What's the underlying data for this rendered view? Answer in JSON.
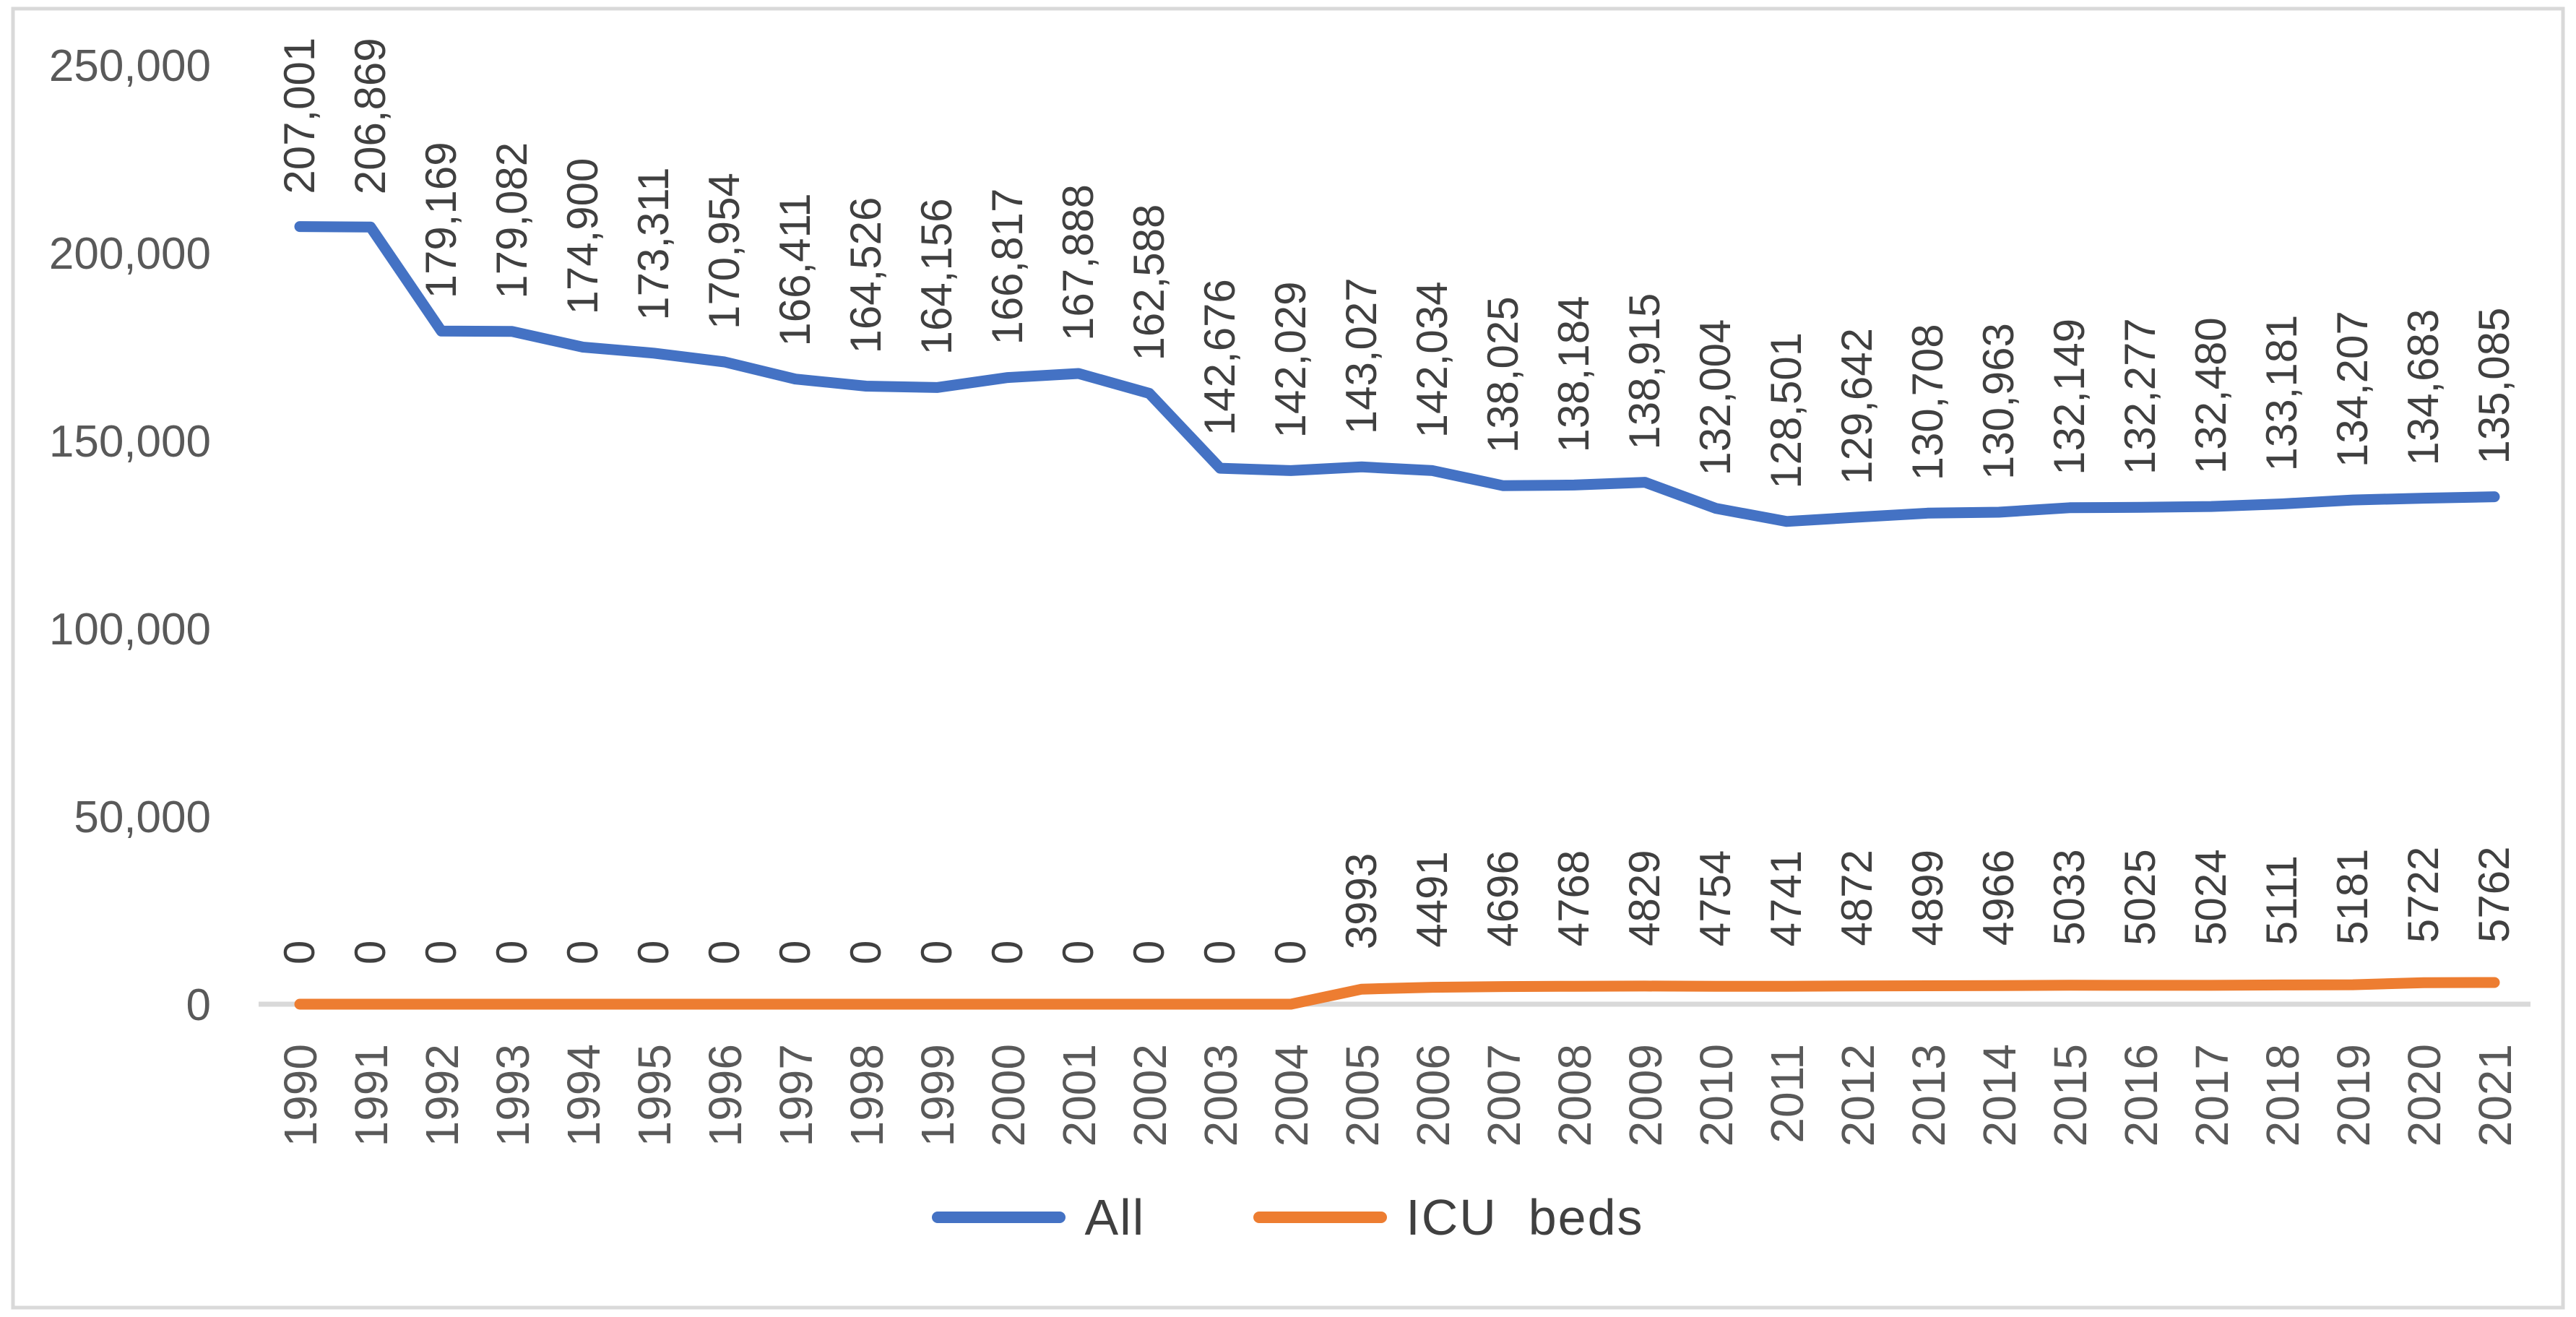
{
  "colors": {
    "all_series": "#4472C4",
    "icu_series": "#ED7D31",
    "axis_text": "#595959",
    "label_text": "#404040",
    "axis_line": "#D9D9D9",
    "border": "#D9D9D9",
    "background": "#FFFFFF"
  },
  "legend": {
    "items": [
      {
        "label": "All",
        "color": "#4472C4"
      },
      {
        "label": "ICU  beds",
        "color": "#ED7D31"
      }
    ]
  },
  "chart_data": {
    "type": "line",
    "title": "",
    "legend_position": "bottom",
    "grid": false,
    "ylim": [
      0,
      250000
    ],
    "y_axis": {
      "ticks": [
        {
          "value": 250000,
          "label": "250,000"
        },
        {
          "value": 200000,
          "label": "200,000"
        },
        {
          "value": 150000,
          "label": "150,000"
        },
        {
          "value": 100000,
          "label": "100,000"
        },
        {
          "value": 50000,
          "label": "50,000"
        },
        {
          "value": 0,
          "label": "0"
        }
      ]
    },
    "categories": [
      "1990",
      "1991",
      "1992",
      "1993",
      "1994",
      "1995",
      "1996",
      "1997",
      "1998",
      "1999",
      "2000",
      "2001",
      "2002",
      "2003",
      "2004",
      "2005",
      "2006",
      "2007",
      "2008",
      "2009",
      "2010",
      "2011",
      "2012",
      "2013",
      "2014",
      "2015",
      "2016",
      "2017",
      "2018",
      "2019",
      "2020",
      "2021"
    ],
    "series": [
      {
        "name": "All",
        "color": "#4472C4",
        "values": [
          207001,
          206869,
          179169,
          179082,
          174900,
          173311,
          170954,
          166411,
          164526,
          164156,
          166817,
          167888,
          162588,
          142676,
          142029,
          143027,
          142034,
          138025,
          138184,
          138915,
          132004,
          128501,
          129642,
          130708,
          130963,
          132149,
          132277,
          132480,
          133181,
          134207,
          134683,
          135085
        ],
        "labels": [
          "207,001",
          "206,869",
          "179,169",
          "179,082",
          "174,900",
          "173,311",
          "170,954",
          "166,411",
          "164,526",
          "164,156",
          "166,817",
          "167,888",
          "162,588",
          "142,676",
          "142,029",
          "143,027",
          "142,034",
          "138,025",
          "138,184",
          "138,915",
          "132,004",
          "128,501",
          "129,642",
          "130,708",
          "130,963",
          "132,149",
          "132,277",
          "132,480",
          "133,181",
          "134,207",
          "134,683",
          "135,085"
        ]
      },
      {
        "name": "ICU beds",
        "color": "#ED7D31",
        "values": [
          0,
          0,
          0,
          0,
          0,
          0,
          0,
          0,
          0,
          0,
          0,
          0,
          0,
          0,
          0,
          3993,
          4491,
          4696,
          4768,
          4829,
          4754,
          4741,
          4872,
          4899,
          4966,
          5033,
          5025,
          5024,
          5111,
          5181,
          5722,
          5762
        ],
        "labels": [
          "0",
          "0",
          "0",
          "0",
          "0",
          "0",
          "0",
          "0",
          "0",
          "0",
          "0",
          "0",
          "0",
          "0",
          "0",
          "3993",
          "4491",
          "4696",
          "4768",
          "4829",
          "4754",
          "4741",
          "4872",
          "4899",
          "4966",
          "5033",
          "5025",
          "5024",
          "5111",
          "5181",
          "5722",
          "5762"
        ]
      }
    ]
  }
}
